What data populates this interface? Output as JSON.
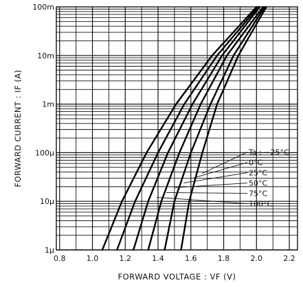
{
  "chart_data": {
    "type": "line",
    "title": "",
    "xlabel": "FORWARD VOLTAGE : VF (V)",
    "ylabel": "FORWARD CURRENT : IF (A)",
    "x_scale": "linear",
    "y_scale": "log",
    "xlim": [
      0.78,
      2.25
    ],
    "ylim": [
      1e-06,
      0.1
    ],
    "x_ticks": [
      {
        "value": 0.8,
        "label": "0.8"
      },
      {
        "value": 1.0,
        "label": "1.0"
      },
      {
        "value": 1.2,
        "label": "1.2"
      },
      {
        "value": 1.4,
        "label": "1.4"
      },
      {
        "value": 1.6,
        "label": "1.6"
      },
      {
        "value": 1.8,
        "label": "1.8"
      },
      {
        "value": 2.0,
        "label": "2.0"
      },
      {
        "value": 2.2,
        "label": "2.2"
      }
    ],
    "y_ticks": [
      {
        "value": 1e-06,
        "label": "1μ"
      },
      {
        "value": 1e-05,
        "label": "10μ"
      },
      {
        "value": 0.0001,
        "label": "100μ"
      },
      {
        "value": 0.001,
        "label": "1m"
      },
      {
        "value": 0.01,
        "label": "10m"
      },
      {
        "value": 0.1,
        "label": "100m"
      }
    ],
    "grid": true,
    "legend_title": "Ta : ",
    "series": [
      {
        "name": "−25°C",
        "x": [
          1.54,
          1.59,
          1.67,
          1.76,
          1.89,
          2.06
        ],
        "y": [
          1e-06,
          1e-05,
          0.0001,
          0.001,
          0.01,
          0.1
        ]
      },
      {
        "name": "0°C",
        "x": [
          1.44,
          1.5,
          1.6,
          1.72,
          1.86,
          2.05
        ],
        "y": [
          1e-06,
          1e-05,
          0.0001,
          0.001,
          0.01,
          0.1
        ]
      },
      {
        "name": "25°C",
        "x": [
          1.34,
          1.42,
          1.53,
          1.66,
          1.82,
          2.04
        ],
        "y": [
          1e-06,
          1e-05,
          0.0001,
          0.001,
          0.01,
          0.1
        ]
      },
      {
        "name": "50°C",
        "x": [
          1.25,
          1.34,
          1.46,
          1.61,
          1.79,
          2.02
        ],
        "y": [
          1e-06,
          1e-05,
          0.0001,
          0.001,
          0.01,
          0.1
        ]
      },
      {
        "name": "75°C",
        "x": [
          1.15,
          1.26,
          1.4,
          1.56,
          1.76,
          2.01
        ],
        "y": [
          1e-06,
          1e-05,
          0.0001,
          0.001,
          0.01,
          0.1
        ]
      },
      {
        "name": "100°C",
        "x": [
          1.06,
          1.18,
          1.33,
          1.51,
          1.73,
          2.0
        ],
        "y": [
          1e-06,
          1e-05,
          0.0001,
          0.001,
          0.01,
          0.1
        ]
      }
    ]
  }
}
